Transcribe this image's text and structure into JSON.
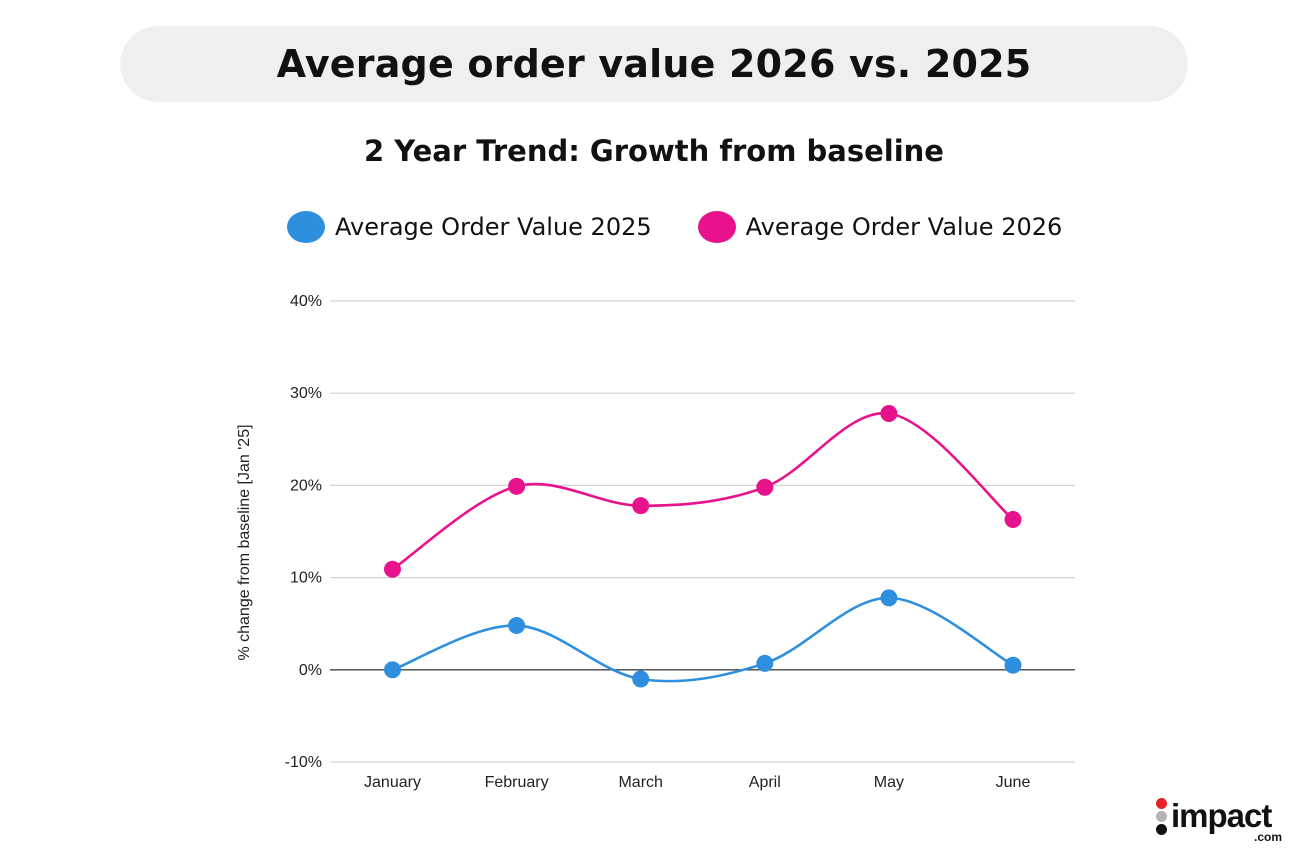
{
  "header": {
    "title": "Average order value 2026 vs. 2025"
  },
  "chart_data": {
    "type": "line",
    "title": "2 Year Trend: Growth from baseline",
    "ylabel": "% change from baseline [Jan '25]",
    "xlabel": "",
    "categories": [
      "January",
      "February",
      "March",
      "April",
      "May",
      "June"
    ],
    "ylim": [
      -10,
      40
    ],
    "yticks": [
      -10,
      0,
      10,
      20,
      30,
      40
    ],
    "ytick_labels": [
      "-10%",
      "0%",
      "10%",
      "20%",
      "30%",
      "40%"
    ],
    "grid": true,
    "legend_position": "top",
    "smooth": true,
    "series": [
      {
        "name": "Average Order Value 2025",
        "color": "#2f8fdf",
        "values": [
          0,
          4.8,
          -1,
          0.7,
          7.8,
          0.5
        ]
      },
      {
        "name": "Average Order Value 2026",
        "color": "#e8128c",
        "values": [
          10.9,
          19.9,
          17.8,
          19.8,
          27.8,
          16.3
        ]
      }
    ]
  },
  "logo": {
    "word": "impact",
    "tld": ".com"
  }
}
